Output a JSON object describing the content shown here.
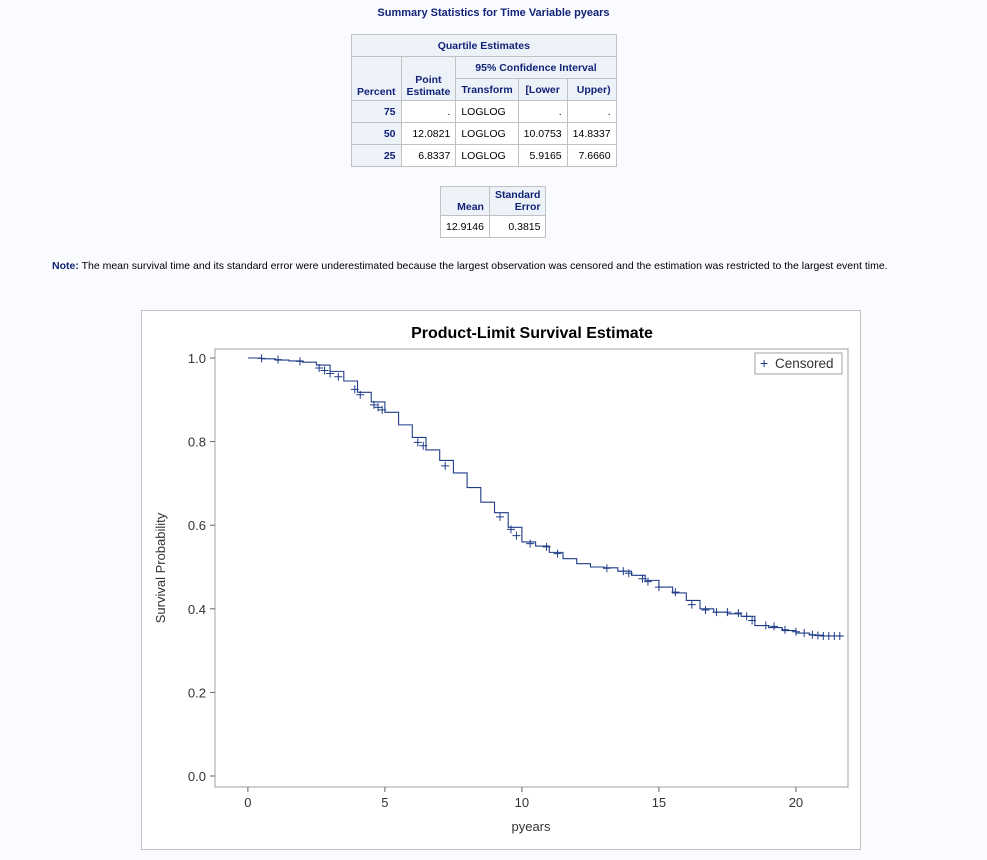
{
  "title": "Summary Statistics for Time Variable pyears",
  "quartiles": {
    "caption": "Quartile Estimates",
    "headers": {
      "percent": "Percent",
      "point_line1": "Point",
      "point_line2": "Estimate",
      "ci": "95% Confidence Interval",
      "transform": "Transform",
      "lower": "[Lower",
      "upper": "Upper)"
    },
    "rows": [
      {
        "percent": "75",
        "point": ".",
        "transform": "LOGLOG",
        "lower": ".",
        "upper": "."
      },
      {
        "percent": "50",
        "point": "12.0821",
        "transform": "LOGLOG",
        "lower": "10.0753",
        "upper": "14.8337"
      },
      {
        "percent": "25",
        "point": "6.8337",
        "transform": "LOGLOG",
        "lower": "5.9165",
        "upper": "7.6660"
      }
    ]
  },
  "mean_table": {
    "mean_label": "Mean",
    "se_label_line1": "Standard",
    "se_label_line2": "Error",
    "mean": "12.9146",
    "se": "0.3815"
  },
  "note": {
    "label": "Note:",
    "text": "The mean survival time and its standard error were underestimated because the largest observation was censored and the estimation was restricted to the largest event time."
  },
  "chart_data": {
    "type": "line",
    "title": "Product-Limit Survival Estimate",
    "xlabel": "pyears",
    "ylabel": "Survival Probability",
    "xlim": [
      -1.2,
      21.9
    ],
    "ylim": [
      0.0,
      1.0
    ],
    "xticks": [
      0,
      5,
      10,
      15,
      20
    ],
    "yticks": [
      0.0,
      0.2,
      0.4,
      0.6,
      0.8,
      1.0
    ],
    "ytick_labels": [
      "0.0",
      "0.2",
      "0.4",
      "0.6",
      "0.8",
      "1.0"
    ],
    "legend": {
      "label": "Censored",
      "symbol": "+",
      "position": "top-right"
    },
    "grid": false,
    "color": "#1f3c88",
    "series": [
      {
        "x": [
          0.0,
          0.5,
          1.0,
          1.5,
          2.0,
          2.5,
          3.0,
          3.5,
          4.0,
          4.5,
          5.0,
          5.5,
          6.0,
          6.5,
          7.0,
          7.5,
          8.0,
          8.5,
          9.0,
          9.5,
          10.0,
          10.5,
          11.0,
          11.5,
          12.0,
          12.5,
          13.0,
          13.5,
          14.0,
          14.5,
          15.0,
          15.5,
          16.0,
          16.5,
          17.0,
          17.5,
          18.0,
          18.5,
          19.0,
          19.5,
          20.0,
          20.5,
          21.0,
          21.7
        ],
        "y": [
          1.0,
          0.998,
          0.995,
          0.993,
          0.99,
          0.983,
          0.968,
          0.945,
          0.918,
          0.895,
          0.87,
          0.84,
          0.81,
          0.78,
          0.755,
          0.725,
          0.69,
          0.655,
          0.63,
          0.595,
          0.56,
          0.55,
          0.535,
          0.52,
          0.508,
          0.5,
          0.498,
          0.49,
          0.48,
          0.468,
          0.452,
          0.438,
          0.42,
          0.4,
          0.392,
          0.388,
          0.382,
          0.36,
          0.355,
          0.348,
          0.342,
          0.337,
          0.335,
          0.335
        ]
      }
    ],
    "censored": [
      {
        "x": 0.5,
        "y": 0.999
      },
      {
        "x": 1.1,
        "y": 0.996
      },
      {
        "x": 1.9,
        "y": 0.992
      },
      {
        "x": 2.6,
        "y": 0.976
      },
      {
        "x": 2.8,
        "y": 0.97
      },
      {
        "x": 3.0,
        "y": 0.963
      },
      {
        "x": 3.3,
        "y": 0.955
      },
      {
        "x": 3.9,
        "y": 0.925
      },
      {
        "x": 4.1,
        "y": 0.912
      },
      {
        "x": 4.6,
        "y": 0.888
      },
      {
        "x": 4.75,
        "y": 0.882
      },
      {
        "x": 4.9,
        "y": 0.876
      },
      {
        "x": 6.2,
        "y": 0.798
      },
      {
        "x": 6.4,
        "y": 0.79
      },
      {
        "x": 7.2,
        "y": 0.742
      },
      {
        "x": 9.2,
        "y": 0.62
      },
      {
        "x": 9.6,
        "y": 0.59
      },
      {
        "x": 9.8,
        "y": 0.575
      },
      {
        "x": 10.3,
        "y": 0.556
      },
      {
        "x": 10.9,
        "y": 0.548
      },
      {
        "x": 11.3,
        "y": 0.532
      },
      {
        "x": 13.1,
        "y": 0.497
      },
      {
        "x": 13.7,
        "y": 0.49
      },
      {
        "x": 13.9,
        "y": 0.485
      },
      {
        "x": 14.4,
        "y": 0.472
      },
      {
        "x": 14.6,
        "y": 0.465
      },
      {
        "x": 15.0,
        "y": 0.452
      },
      {
        "x": 15.6,
        "y": 0.44
      },
      {
        "x": 16.2,
        "y": 0.41
      },
      {
        "x": 16.7,
        "y": 0.397
      },
      {
        "x": 17.1,
        "y": 0.392
      },
      {
        "x": 17.5,
        "y": 0.392
      },
      {
        "x": 17.9,
        "y": 0.39
      },
      {
        "x": 18.2,
        "y": 0.382
      },
      {
        "x": 18.4,
        "y": 0.372
      },
      {
        "x": 18.9,
        "y": 0.36
      },
      {
        "x": 19.2,
        "y": 0.358
      },
      {
        "x": 19.6,
        "y": 0.35
      },
      {
        "x": 20.0,
        "y": 0.345
      },
      {
        "x": 20.3,
        "y": 0.342
      },
      {
        "x": 20.6,
        "y": 0.338
      },
      {
        "x": 20.8,
        "y": 0.336
      },
      {
        "x": 21.0,
        "y": 0.335
      },
      {
        "x": 21.2,
        "y": 0.335
      },
      {
        "x": 21.4,
        "y": 0.335
      },
      {
        "x": 21.6,
        "y": 0.335
      }
    ]
  }
}
